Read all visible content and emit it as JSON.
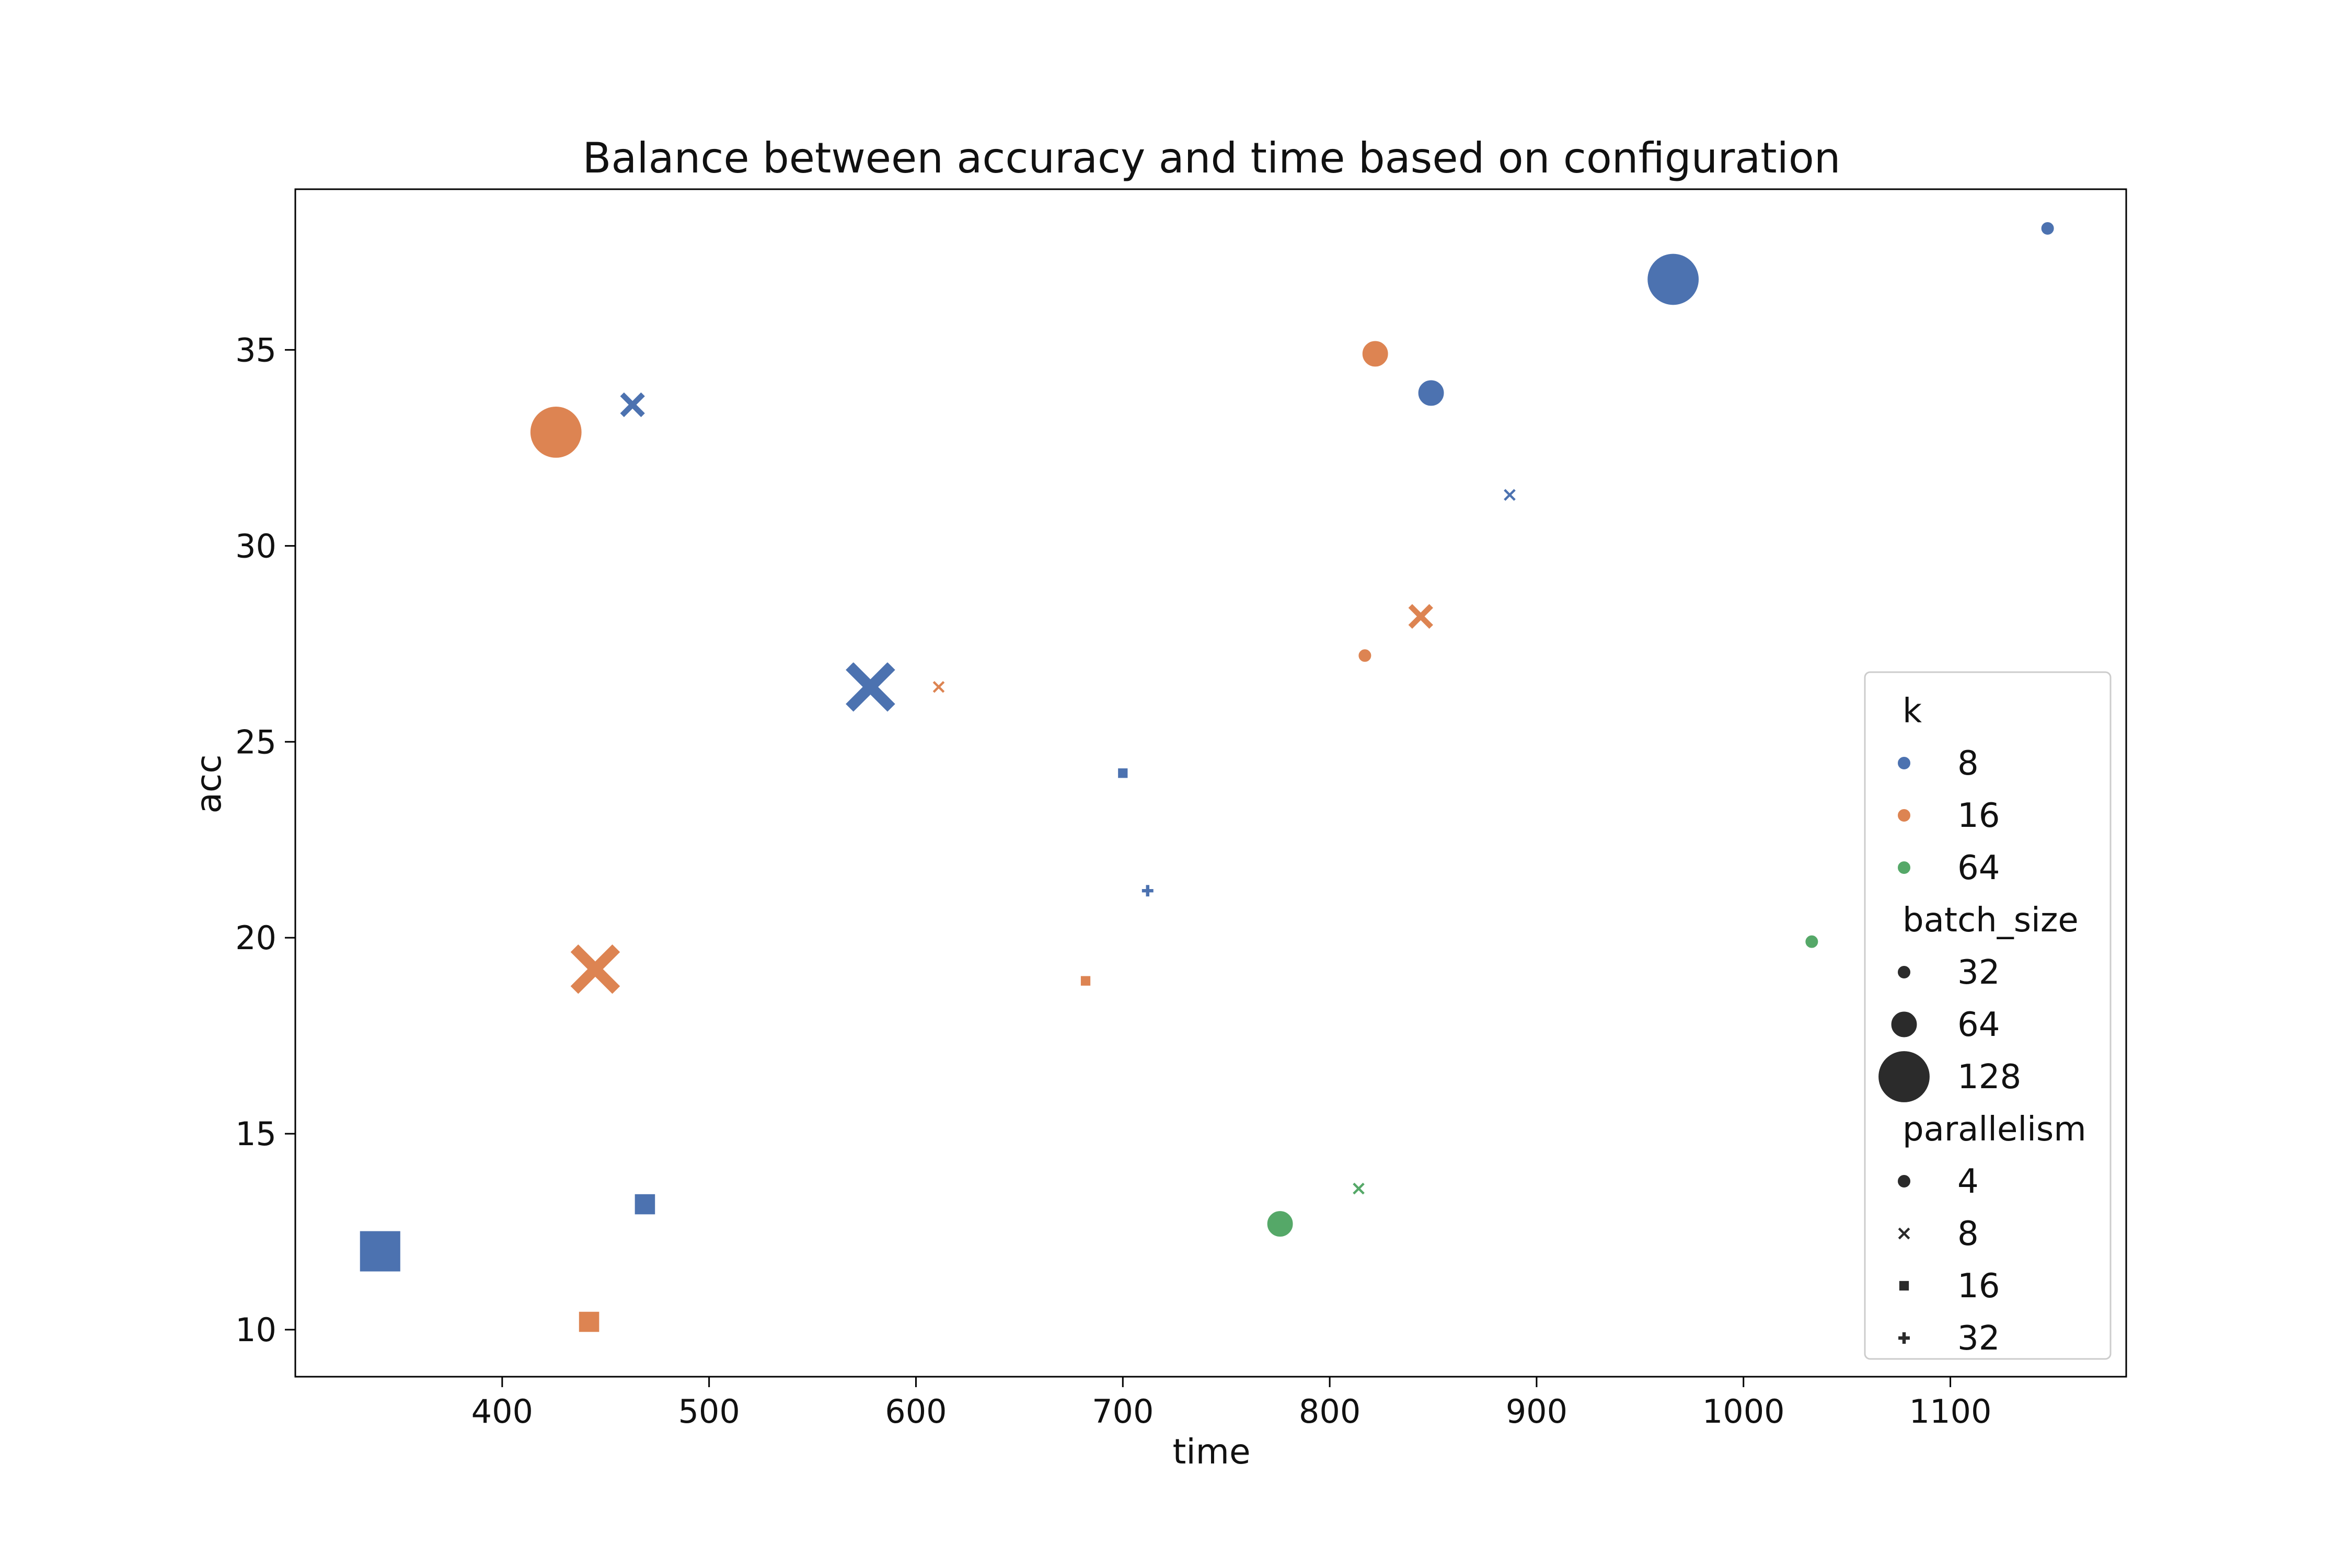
{
  "chart_data": {
    "type": "scatter",
    "title": "Balance between accuracy and time based on configuration",
    "xlabel": "time",
    "ylabel": "acc",
    "xlim": [
      300,
      1185
    ],
    "ylim": [
      8823,
      39.1
    ],
    "xticks": [
      400,
      500,
      600,
      700,
      800,
      900,
      1000,
      1100
    ],
    "yticks": [
      10,
      15,
      20,
      25,
      30,
      35
    ],
    "grid": false,
    "legend_position": "right",
    "colors": {
      "8": "#4c72b0",
      "16": "#dd8452",
      "64": "#55a868"
    },
    "legend": {
      "k_title": "k",
      "k": [
        "8",
        "16",
        "64"
      ],
      "batch_size_title": "batch_size",
      "batch_size": [
        "32",
        "64",
        "128"
      ],
      "parallelism_title": "parallelism",
      "parallelism": [
        "4",
        "8",
        "16",
        "32"
      ]
    },
    "points": [
      {
        "x": 1147,
        "y": 38.1,
        "k": "8",
        "batch_size": "32",
        "parallelism": "4"
      },
      {
        "x": 966,
        "y": 36.8,
        "k": "8",
        "batch_size": "128",
        "parallelism": "4"
      },
      {
        "x": 849,
        "y": 33.9,
        "k": "8",
        "batch_size": "64",
        "parallelism": "4"
      },
      {
        "x": 463,
        "y": 33.6,
        "k": "8",
        "batch_size": "64",
        "parallelism": "8"
      },
      {
        "x": 887,
        "y": 31.3,
        "k": "8",
        "batch_size": "32",
        "parallelism": "8"
      },
      {
        "x": 578,
        "y": 26.4,
        "k": "8",
        "batch_size": "128",
        "parallelism": "8"
      },
      {
        "x": 700,
        "y": 24.2,
        "k": "8",
        "batch_size": "32",
        "parallelism": "16"
      },
      {
        "x": 712,
        "y": 21.2,
        "k": "8",
        "batch_size": "32",
        "parallelism": "32"
      },
      {
        "x": 469,
        "y": 13.2,
        "k": "8",
        "batch_size": "64",
        "parallelism": "16"
      },
      {
        "x": 341,
        "y": 12.0,
        "k": "8",
        "batch_size": "128",
        "parallelism": "16"
      },
      {
        "x": 822,
        "y": 34.9,
        "k": "16",
        "batch_size": "64",
        "parallelism": "4"
      },
      {
        "x": 426,
        "y": 32.9,
        "k": "16",
        "batch_size": "128",
        "parallelism": "4"
      },
      {
        "x": 844,
        "y": 28.2,
        "k": "16",
        "batch_size": "64",
        "parallelism": "8"
      },
      {
        "x": 817,
        "y": 27.2,
        "k": "16",
        "batch_size": "32",
        "parallelism": "4"
      },
      {
        "x": 611,
        "y": 26.4,
        "k": "16",
        "batch_size": "32",
        "parallelism": "8"
      },
      {
        "x": 445,
        "y": 19.2,
        "k": "16",
        "batch_size": "128",
        "parallelism": "8"
      },
      {
        "x": 682,
        "y": 18.9,
        "k": "16",
        "batch_size": "32",
        "parallelism": "16"
      },
      {
        "x": 442,
        "y": 10.2,
        "k": "16",
        "batch_size": "64",
        "parallelism": "16"
      },
      {
        "x": 1033,
        "y": 19.9,
        "k": "64",
        "batch_size": "32",
        "parallelism": "4"
      },
      {
        "x": 776,
        "y": 12.7,
        "k": "64",
        "batch_size": "64",
        "parallelism": "4"
      },
      {
        "x": 814,
        "y": 13.6,
        "k": "64",
        "batch_size": "32",
        "parallelism": "8"
      }
    ]
  }
}
